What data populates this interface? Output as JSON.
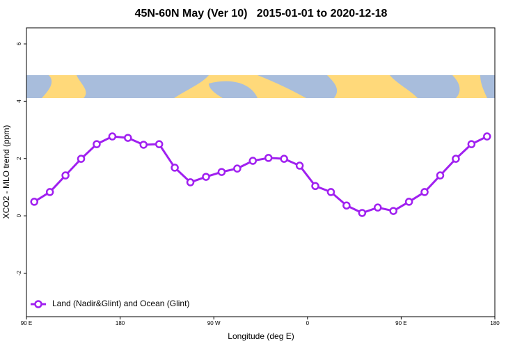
{
  "chart_data": {
    "type": "line",
    "title": "45N-60N May (Ver 10)   2015-01-01 to 2020-12-18",
    "x_label": "Longitude (deg E)",
    "y_label": "XCO2 - MLO trend (ppm)",
    "x": [
      97.5,
      112.5,
      127.5,
      142.5,
      157.5,
      172.5,
      187.5,
      202.5,
      217.5,
      232.5,
      247.5,
      262.5,
      277.5,
      292.5,
      307.5,
      322.5,
      337.5,
      352.5,
      367.5,
      382.5,
      397.5,
      412.5,
      427.5,
      442.5,
      457.5,
      472.5,
      487.5,
      502.5,
      517.5,
      532.5
    ],
    "series": [
      {
        "name": "Land (Nadir&Glint) and Ocean (Glint)",
        "color": "#a020f0",
        "values": [
          0.49,
          0.83,
          1.41,
          1.99,
          2.5,
          2.77,
          2.72,
          2.48,
          2.5,
          1.68,
          1.17,
          1.36,
          1.53,
          1.65,
          1.92,
          2.02,
          1.99,
          1.75,
          1.04,
          0.83,
          0.36,
          0.1,
          0.29,
          0.17,
          0.49,
          0.83,
          1.41,
          1.99,
          2.5,
          2.77
        ]
      }
    ],
    "xlim": [
      90,
      540
    ],
    "xticks": [
      {
        "value": 90,
        "label": "90 E"
      },
      {
        "value": 180,
        "label": "180"
      },
      {
        "value": 270,
        "label": "90 W"
      },
      {
        "value": 360,
        "label": "0"
      },
      {
        "value": 450,
        "label": "90 E"
      },
      {
        "value": 540,
        "label": "180"
      }
    ],
    "ylim": [
      -3.52,
      6.56
    ],
    "yticks": [
      -2,
      0,
      2,
      4,
      6
    ],
    "legend": "bottom-left"
  }
}
